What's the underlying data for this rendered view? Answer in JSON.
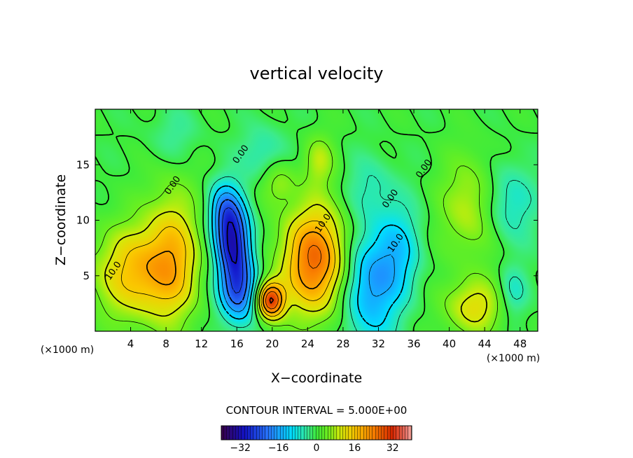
{
  "chart_data": {
    "type": "heatmap",
    "title": "vertical velocity",
    "xlabel": "X−coordinate",
    "ylabel": "Z−coordinate",
    "x_unit_left": "(×1000 m)",
    "x_unit_right": "(×1000 m)",
    "xlim": [
      0,
      50
    ],
    "ylim": [
      0,
      20
    ],
    "x_ticks": [
      4,
      8,
      12,
      16,
      20,
      24,
      28,
      32,
      36,
      40,
      44,
      48
    ],
    "y_ticks": [
      5,
      10,
      15
    ],
    "contour_interval_text": "CONTOUR INTERVAL = 5.000E+00",
    "contour_labels": [
      {
        "text": "10.0",
        "x": 2.3,
        "z": 5.3
      },
      {
        "text": "0.00",
        "x": 9.0,
        "z": 13.0
      },
      {
        "text": "0.00",
        "x": 16.7,
        "z": 15.8
      },
      {
        "text": "10.0",
        "x": 26.0,
        "z": 9.6
      },
      {
        "text": "0.00",
        "x": 33.6,
        "z": 11.8
      },
      {
        "text": "10.0",
        "x": 34.2,
        "z": 7.8
      },
      {
        "text": "0.00",
        "x": 37.4,
        "z": 14.5
      }
    ],
    "features": [
      {
        "sign": "pos",
        "x": 5.0,
        "z": 5.3,
        "amp": 17,
        "sx": 3.6,
        "sz": 3.0
      },
      {
        "sign": "pos",
        "x": 8.8,
        "z": 7.4,
        "amp": 12,
        "sx": 2.0,
        "sz": 4.4
      },
      {
        "sign": "neg",
        "x": 15.6,
        "z": 8.0,
        "amp": -28,
        "sx": 1.4,
        "sz": 2.4
      },
      {
        "sign": "neg",
        "x": 16.2,
        "z": 3.6,
        "amp": -22,
        "sx": 1.5,
        "sz": 2.0
      },
      {
        "sign": "neg",
        "x": 14.6,
        "z": 11.0,
        "amp": -14,
        "sx": 1.3,
        "sz": 1.8
      },
      {
        "sign": "pos",
        "x": 19.8,
        "z": 2.8,
        "amp": 30,
        "sx": 1.1,
        "sz": 1.2
      },
      {
        "sign": "pos",
        "x": 24.8,
        "z": 6.4,
        "amp": 26,
        "sx": 2.6,
        "sz": 3.4
      },
      {
        "sign": "neg",
        "x": 31.0,
        "z": 4.0,
        "amp": -16,
        "sx": 2.2,
        "sz": 3.6
      },
      {
        "sign": "neg",
        "x": 34.2,
        "z": 7.2,
        "amp": -10,
        "sx": 1.8,
        "sz": 3.0
      },
      {
        "sign": "pos",
        "x": 42.6,
        "z": 11.2,
        "amp": 10,
        "sx": 2.4,
        "sz": 3.2
      },
      {
        "sign": "pos",
        "x": 42.8,
        "z": 2.2,
        "amp": 12,
        "sx": 2.4,
        "sz": 1.8
      },
      {
        "sign": "neg",
        "x": 46.5,
        "z": 11.5,
        "amp": -9,
        "sx": 2.2,
        "sz": 2.6
      },
      {
        "sign": "neg",
        "x": 47.2,
        "z": 3.5,
        "amp": -7,
        "sx": 1.2,
        "sz": 1.6
      },
      {
        "sign": "pos",
        "x": 25.3,
        "z": 15.4,
        "amp": 8,
        "sx": 1.2,
        "sz": 1.6
      },
      {
        "sign": "pos",
        "x": 20.6,
        "z": 13.4,
        "amp": 7,
        "sx": 1.4,
        "sz": 1.4
      },
      {
        "sign": "neg",
        "x": 19.0,
        "z": 16.0,
        "amp": -6,
        "sx": 1.8,
        "sz": 1.8
      },
      {
        "sign": "neg",
        "x": 9.0,
        "z": 17.6,
        "amp": -4,
        "sx": 2.0,
        "sz": 1.8
      },
      {
        "sign": "neg",
        "x": 31.0,
        "z": 13.0,
        "amp": -5,
        "sx": 2.0,
        "sz": 2.0
      }
    ],
    "colorbar": {
      "range": [
        -40,
        40
      ],
      "ticks": [
        -32,
        -16,
        0,
        16,
        32
      ],
      "tick_labels": [
        "−32",
        "−16",
        "0",
        "16",
        "32"
      ]
    }
  }
}
